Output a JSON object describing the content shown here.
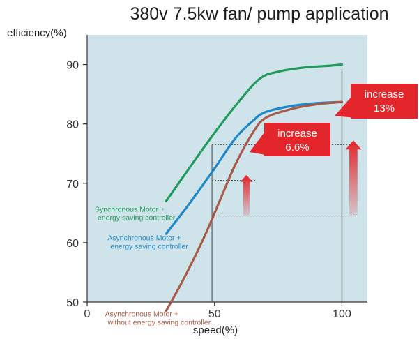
{
  "chart_data": {
    "type": "line",
    "title": "380v 7.5kw fan/ pump application",
    "xlabel": "speed(%)",
    "ylabel": "efficiency(%)",
    "xlim": [
      0,
      110
    ],
    "ylim": [
      50,
      95
    ],
    "x_ticks": [
      0,
      50,
      100
    ],
    "y_ticks": [
      50,
      60,
      70,
      80,
      90
    ],
    "x_tick_labels": [
      "0",
      "50",
      "100"
    ],
    "y_tick_labels": [
      "50",
      "60",
      "70",
      "80",
      "90"
    ],
    "background_color": "#cfe3ea",
    "grid": false,
    "series": [
      {
        "name": "Synchronous Motor + energy saving controller",
        "label_lines": [
          "Synchronous Motor +",
          "energy saving controller"
        ],
        "color": "#1f9a5a",
        "x": [
          31,
          40,
          50,
          60,
          68,
          75,
          85,
          95,
          100
        ],
        "y": [
          67,
          72.5,
          78.5,
          84,
          87.7,
          88.8,
          89.5,
          89.8,
          90
        ]
      },
      {
        "name": "Asynchronous Motor + energy saving controller",
        "label_lines": [
          "Asynchronous Motor +",
          "energy saving controller"
        ],
        "color": "#1e88c8",
        "x": [
          31,
          40,
          50,
          58,
          65,
          70,
          80,
          90,
          100
        ],
        "y": [
          61.5,
          66.5,
          72.5,
          77.5,
          80.5,
          82,
          83,
          83.5,
          83.7
        ]
      },
      {
        "name": "Asynchronous Motor + without energy saving controller",
        "label_lines": [
          "Asynchronous Motor +",
          "without energy saving controller"
        ],
        "color": "#a85a48",
        "x": [
          31,
          38,
          46,
          52,
          58,
          65,
          70,
          80,
          90,
          100
        ],
        "y": [
          48.5,
          54,
          61,
          67,
          73,
          78.5,
          81,
          82.5,
          83.3,
          83.7
        ]
      }
    ],
    "annotations": [
      {
        "text_lines": [
          "increase",
          "6.6%"
        ],
        "value": "6.6%"
      },
      {
        "text_lines": [
          "increase",
          "13%"
        ],
        "value": "13%"
      }
    ],
    "reference_lines": {
      "vertical_x": [
        49,
        100
      ],
      "dashed_horizontal_y": [
        76.5,
        70.5,
        64.5
      ]
    },
    "annotation_color": "#e2262b"
  }
}
